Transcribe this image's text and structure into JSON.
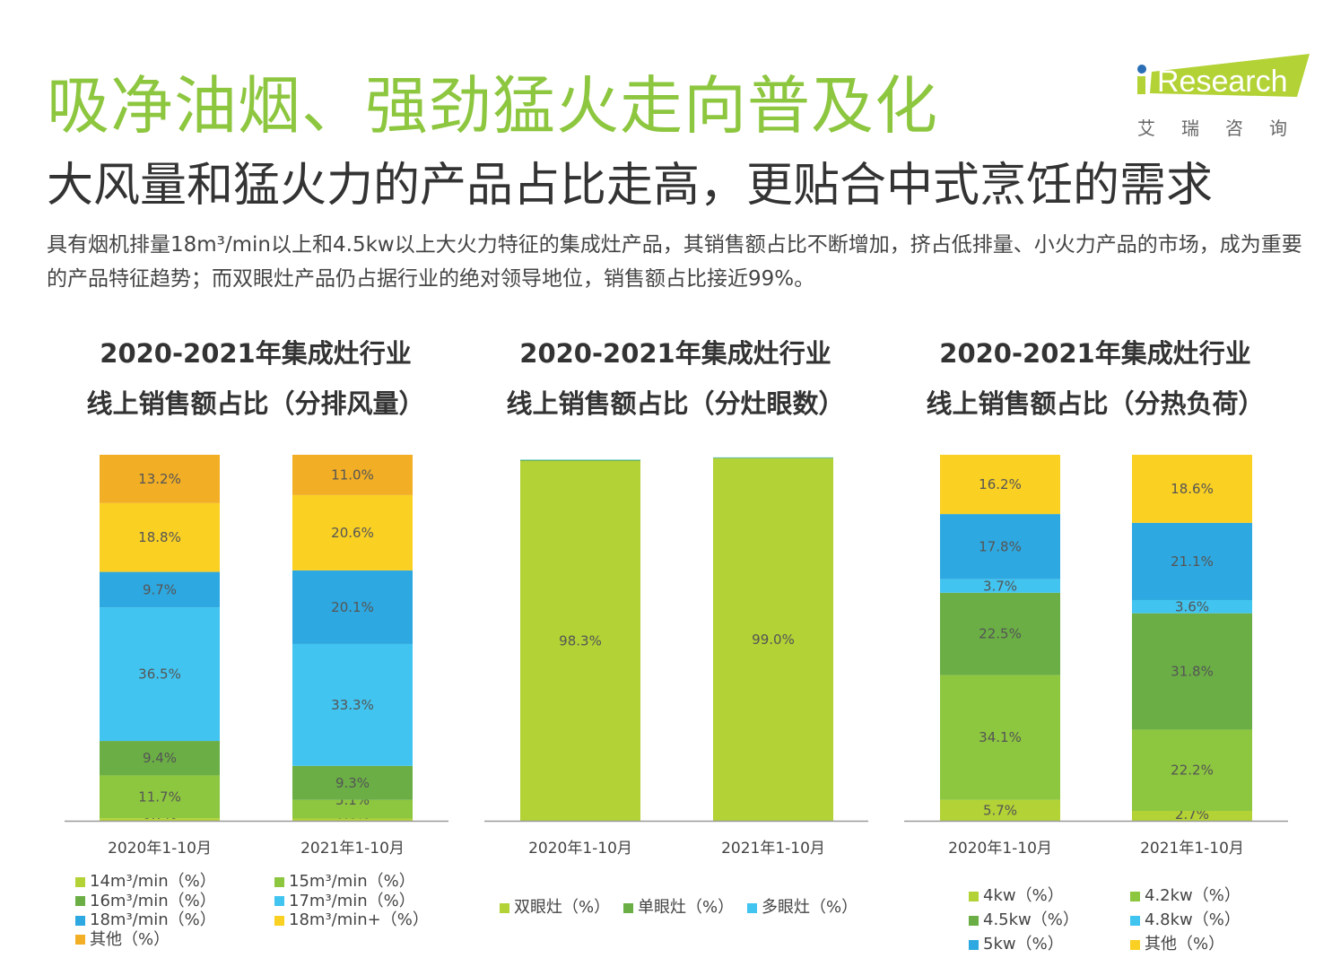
{
  "header": {
    "title": "吸净油烟、强劲猛火走向普及化",
    "subtitle": "大风量和猛火力的产品占比走高，更贴合中式烹饪的需求",
    "description": "具有烟机排量18m³/min以上和4.5kw以上大火力特征的集成灶产品，其销售额占比不断增加，挤占低排量、小火力产品的市场，成为重要的产品特征趋势；而双眼灶产品仍占据行业的绝对领导地位，销售额占比接近99%。"
  },
  "logo": {
    "text": "iResearch",
    "cn": "艾 瑞 咨 询"
  },
  "chart_data": [
    {
      "type": "bar",
      "stacked": true,
      "title": [
        "2020-2021年集成灶行业",
        "线上销售额占比（分排风量）"
      ],
      "categories": [
        "2020年1-10月",
        "2021年1-10月"
      ],
      "series": [
        {
          "name": "14m³/min（%）",
          "color": "#b2d235",
          "values": [
            0.7,
            0.6
          ]
        },
        {
          "name": "15m³/min（%）",
          "color": "#8dc63f",
          "values": [
            11.7,
            5.1
          ]
        },
        {
          "name": "16m³/min（%）",
          "color": "#6aae45",
          "values": [
            9.4,
            9.3
          ]
        },
        {
          "name": "17m³/min（%）",
          "color": "#41c4f0",
          "values": [
            36.5,
            33.3
          ]
        },
        {
          "name": "18m³/min（%）",
          "color": "#2ea8e0",
          "values": [
            9.7,
            20.1
          ]
        },
        {
          "name": "18m³/min+（%）",
          "color": "#fad023",
          "values": [
            18.8,
            20.6
          ]
        },
        {
          "name": "其他（%）",
          "color": "#f2ae24",
          "values": [
            13.2,
            11.0
          ]
        }
      ]
    },
    {
      "type": "bar",
      "stacked": true,
      "title": [
        "2020-2021年集成灶行业",
        "线上销售额占比（分灶眼数）"
      ],
      "categories": [
        "2020年1-10月",
        "2021年1-10月"
      ],
      "series": [
        {
          "name": "双眼灶（%）",
          "color": "#b2d235",
          "values": [
            98.3,
            99.0
          ],
          "labeled": true
        },
        {
          "name": "单眼灶（%）",
          "color": "#6aae45",
          "values": [
            0.3,
            0.2
          ],
          "labeled": false
        },
        {
          "name": "多眼灶（%）",
          "color": "#41c4f0",
          "values": [
            0.1,
            0.1
          ],
          "labeled": false
        }
      ]
    },
    {
      "type": "bar",
      "stacked": true,
      "title": [
        "2020-2021年集成灶行业",
        "线上销售额占比（分热负荷）"
      ],
      "categories": [
        "2020年1-10月",
        "2021年1-10月"
      ],
      "series": [
        {
          "name": "4kw（%）",
          "color": "#b2d235",
          "values": [
            5.7,
            2.7
          ]
        },
        {
          "name": "4.2kw（%）",
          "color": "#8dc63f",
          "values": [
            34.1,
            22.2
          ]
        },
        {
          "name": "4.5kw（%）",
          "color": "#6aae45",
          "values": [
            22.5,
            31.8
          ]
        },
        {
          "name": "4.8kw（%）",
          "color": "#41c4f0",
          "values": [
            3.7,
            3.6
          ]
        },
        {
          "name": "5kw（%）",
          "color": "#2ea8e0",
          "values": [
            17.8,
            21.1
          ]
        },
        {
          "name": "其他（%）",
          "color": "#fad023",
          "values": [
            16.2,
            18.6
          ]
        }
      ]
    }
  ]
}
